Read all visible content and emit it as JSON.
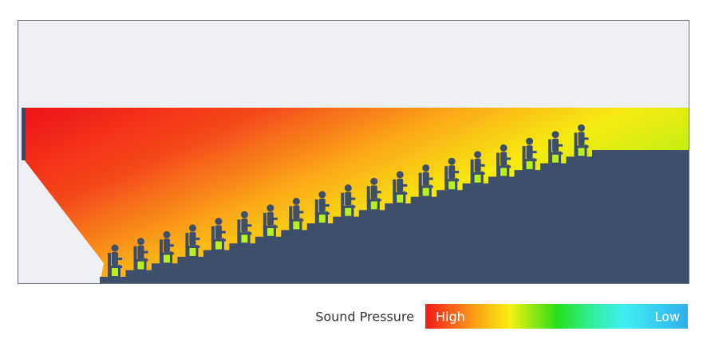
{
  "legend": {
    "title": "Sound Pressure",
    "high": "High",
    "low": "Low"
  }
}
